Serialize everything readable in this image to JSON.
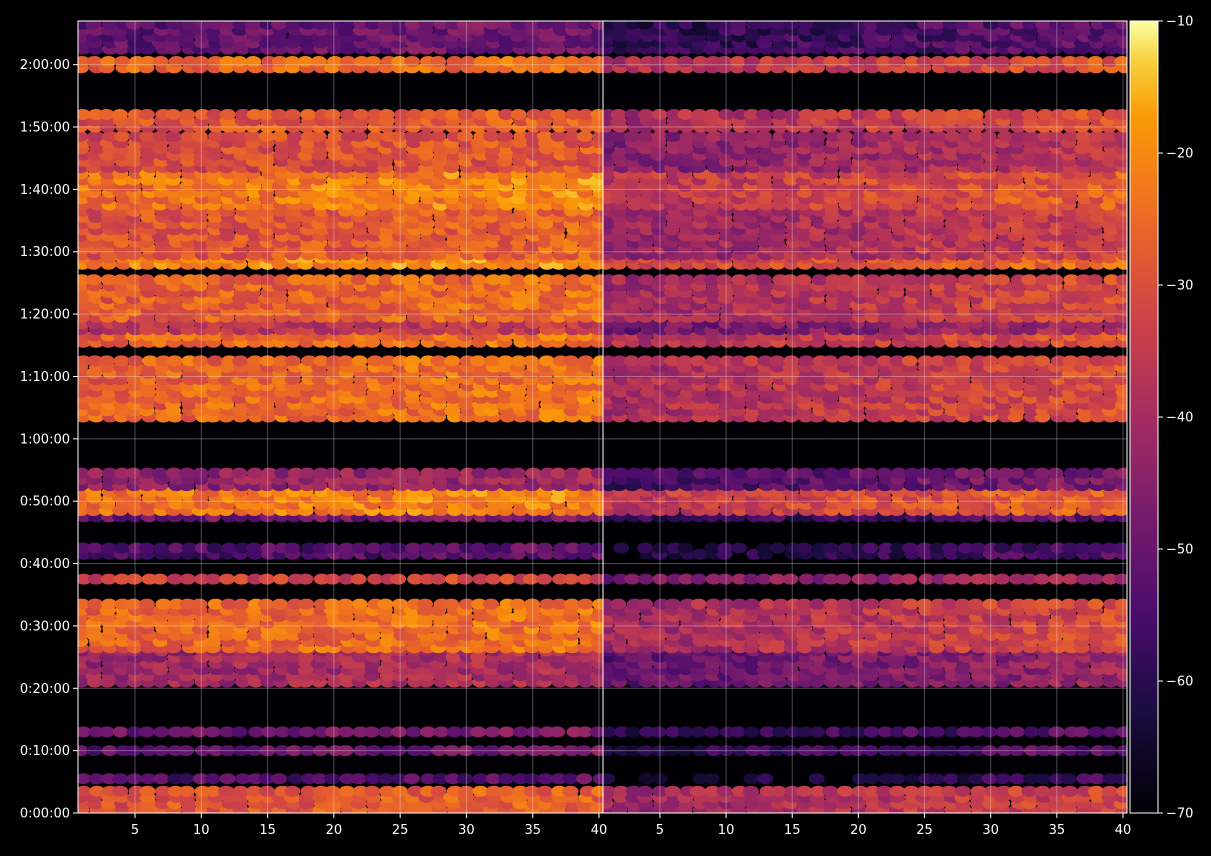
{
  "chart_data": {
    "type": "heatmap",
    "colormap": "inferno",
    "background": "#000000",
    "grid": true,
    "panels": [
      {
        "name": "",
        "x_ticks": [
          5,
          10,
          15,
          20,
          25,
          30,
          35,
          40
        ],
        "x_range": [
          1,
          40
        ],
        "y_range_seconds": [
          0,
          7620
        ],
        "y_ticks": [
          {
            "value": 0,
            "label": "0:00:00"
          },
          {
            "value": 600,
            "label": "0:10:00"
          },
          {
            "value": 1200,
            "label": "0:20:00"
          },
          {
            "value": 1800,
            "label": "0:30:00"
          },
          {
            "value": 2400,
            "label": "0:40:00"
          },
          {
            "value": 3000,
            "label": "0:50:00"
          },
          {
            "value": 3600,
            "label": "1:00:00"
          },
          {
            "value": 4200,
            "label": "1:10:00"
          },
          {
            "value": 4800,
            "label": "1:20:00"
          },
          {
            "value": 5400,
            "label": "1:30:00"
          },
          {
            "value": 6000,
            "label": "1:40:00"
          },
          {
            "value": 6600,
            "label": "1:50:00"
          },
          {
            "value": 7200,
            "label": "2:00:00"
          }
        ],
        "bands": [
          {
            "y0": 0,
            "y1": 240,
            "val": -30
          },
          {
            "y0": 300,
            "y1": 360,
            "val": -55
          },
          {
            "y0": 570,
            "y1": 630,
            "val": -52
          },
          {
            "y0": 750,
            "y1": 810,
            "val": -50
          },
          {
            "y0": 1230,
            "y1": 1560,
            "val": -42
          },
          {
            "y0": 1560,
            "y1": 2040,
            "val": -27
          },
          {
            "y0": 2220,
            "y1": 2280,
            "val": -35
          },
          {
            "y0": 2460,
            "y1": 2550,
            "val": -55
          },
          {
            "y0": 2820,
            "y1": 2880,
            "val": -50
          },
          {
            "y0": 2880,
            "y1": 3120,
            "val": -24
          },
          {
            "y0": 3120,
            "y1": 3300,
            "val": -45
          },
          {
            "y0": 3780,
            "y1": 4380,
            "val": -27
          },
          {
            "y0": 4500,
            "y1": 4620,
            "val": -27
          },
          {
            "y0": 4620,
            "y1": 4740,
            "val": -38
          },
          {
            "y0": 4740,
            "y1": 5160,
            "val": -28
          },
          {
            "y0": 5250,
            "y1": 5340,
            "val": -22
          },
          {
            "y0": 5340,
            "y1": 5820,
            "val": -30
          },
          {
            "y0": 5820,
            "y1": 6180,
            "val": -24
          },
          {
            "y0": 6180,
            "y1": 6540,
            "val": -32
          },
          {
            "y0": 6570,
            "y1": 6720,
            "val": -30
          },
          {
            "y0": 7140,
            "y1": 7230,
            "val": -27
          },
          {
            "y0": 7320,
            "y1": 7620,
            "val": -52
          }
        ]
      },
      {
        "name": "",
        "x_ticks": [
          5,
          10,
          15,
          20,
          25,
          30,
          35,
          40
        ],
        "x_range": [
          1,
          40
        ],
        "bands": [
          {
            "y0": 0,
            "y1": 240,
            "val": -36
          },
          {
            "y0": 300,
            "y1": 360,
            "val": -60
          },
          {
            "y0": 570,
            "y1": 630,
            "val": -55
          },
          {
            "y0": 750,
            "y1": 810,
            "val": -55
          },
          {
            "y0": 1230,
            "y1": 1560,
            "val": -46
          },
          {
            "y0": 1560,
            "y1": 2040,
            "val": -35
          },
          {
            "y0": 2220,
            "y1": 2280,
            "val": -42
          },
          {
            "y0": 2460,
            "y1": 2550,
            "val": -58
          },
          {
            "y0": 2820,
            "y1": 2880,
            "val": -54
          },
          {
            "y0": 2880,
            "y1": 3120,
            "val": -30
          },
          {
            "y0": 3120,
            "y1": 3300,
            "val": -50
          },
          {
            "y0": 3780,
            "y1": 4380,
            "val": -34
          },
          {
            "y0": 4500,
            "y1": 4620,
            "val": -33
          },
          {
            "y0": 4620,
            "y1": 4740,
            "val": -44
          },
          {
            "y0": 4740,
            "y1": 5160,
            "val": -35
          },
          {
            "y0": 5250,
            "y1": 5340,
            "val": -28
          },
          {
            "y0": 5340,
            "y1": 5820,
            "val": -37
          },
          {
            "y0": 5820,
            "y1": 6180,
            "val": -31
          },
          {
            "y0": 6180,
            "y1": 6540,
            "val": -40
          },
          {
            "y0": 6570,
            "y1": 6720,
            "val": -34
          },
          {
            "y0": 7140,
            "y1": 7230,
            "val": -33
          },
          {
            "y0": 7320,
            "y1": 7620,
            "val": -55
          }
        ]
      }
    ],
    "colorbar": {
      "range": [
        -70,
        -10
      ],
      "ticks": [
        -10,
        -20,
        -30,
        -40,
        -50,
        -60,
        -70
      ],
      "tick_labels": [
        "−10",
        "−20",
        "−30",
        "−40",
        "−50",
        "−60",
        "−70"
      ]
    }
  }
}
